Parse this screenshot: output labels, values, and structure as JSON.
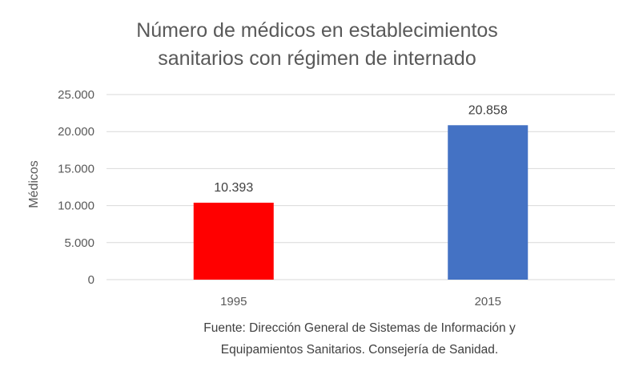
{
  "chart_data": {
    "type": "bar",
    "title_lines": [
      "Número de médicos en establecimientos",
      "sanitarios con régimen de internado"
    ],
    "categories": [
      "1995",
      "2015"
    ],
    "values": [
      10393,
      20858
    ],
    "data_labels": [
      "10.393",
      "20.858"
    ],
    "bar_colors": [
      "#ff0000",
      "#4472c4"
    ],
    "ylabel": "Médicos",
    "xlabel": "",
    "ylim": [
      0,
      25000
    ],
    "yticks": [
      0,
      5000,
      10000,
      15000,
      20000,
      25000
    ],
    "ytick_labels": [
      "0",
      "5.000",
      "10.000",
      "15.000",
      "20.000",
      "25.000"
    ],
    "grid": true,
    "legend": "none",
    "source_lines": [
      "Fuente: Dirección General de Sistemas de Información y",
      "Equipamientos Sanitarios. Consejería de Sanidad."
    ]
  }
}
